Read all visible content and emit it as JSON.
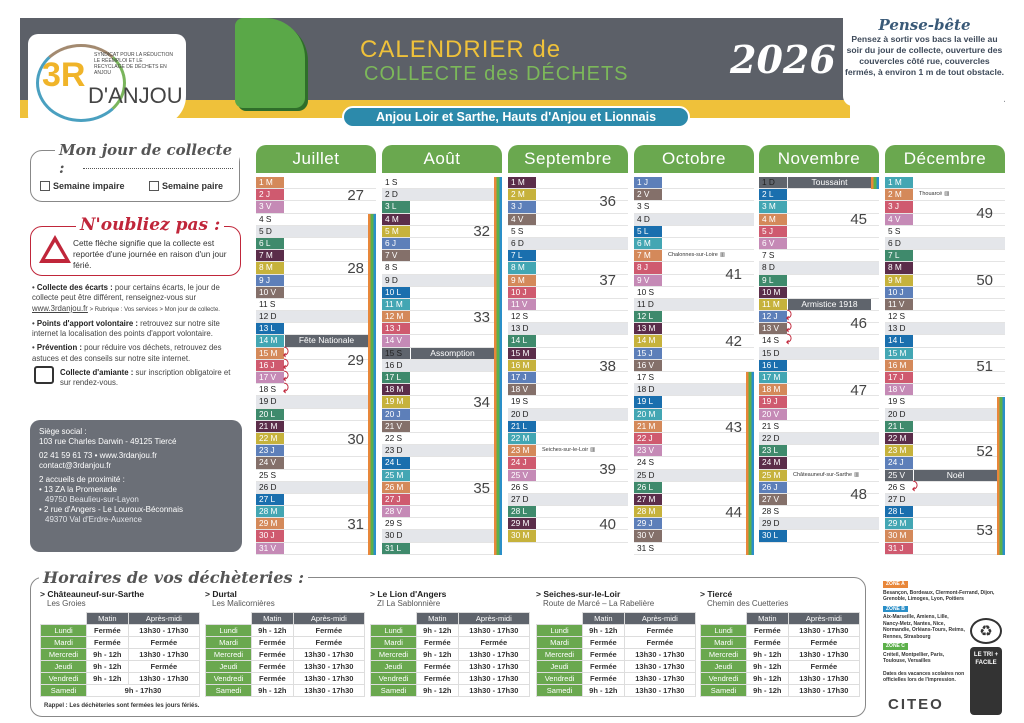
{
  "header": {
    "logo": {
      "big": "3R",
      "dan": "D'ANJOU",
      "tagline": "SYNDICAT POUR LA RÉDUCTION LE RÉEMPLOI ET LE RECYCLAGE DE DÉCHETS EN ANJOU"
    },
    "title_line1": "CALENDRIER de",
    "title_line2": "COLLECTE des DÉCHETS",
    "year": "2026",
    "subtitle": "Anjou Loir et Sarthe, Hauts d'Anjou et Lionnais",
    "pense_bete": {
      "title": "Pense-bête",
      "text": "Pensez à sortir vos bacs la veille au soir du jour de collecte, ouverture des couvercles côté rue, couvercles fermés, à environ 1 m de tout obstacle."
    }
  },
  "sidebar": {
    "jour_title": "Mon jour de collecte :",
    "impaire": "Semaine impaire",
    "paire": "Semaine paire",
    "oubli_title": "N'oubliez pas :",
    "oubli_text": "Cette flèche signifie que la collecte est reportée d'une journée en raison d'un jour férié.",
    "bullets": [
      {
        "b": "Collecte des écarts :",
        "t": " pour certains écarts, le jour de collecte peut être différent, renseignez-vous sur ",
        "link": "www.3rdanjou.fr",
        "s": " > Rubrique : Vos services > Mon jour de collecte."
      },
      {
        "b": "Points d'apport volontaire :",
        "t": " retrouvez sur notre site internet la localisation des points d'apport volontaire."
      },
      {
        "b": "Prévention :",
        "t": " pour réduire vos déchets, retrouvez des astuces et des conseils sur notre site internet."
      },
      {
        "b": "Collecte d'amiante :",
        "t": " sur inscription obligatoire et sur rendez-vous."
      }
    ],
    "contact": {
      "l1": "Siège social :",
      "l2": "103 rue Charles Darwin - 49125 Tiercé",
      "l3": "02 41 59 61 73 • www.3rdanjou.fr",
      "l4": "contact@3rdanjou.fr",
      "l5": "2 accueils de proximité :",
      "l6": "• 13 ZA la Promenade",
      "l7": "49750 Beaulieu-sur-Layon",
      "l8": "• 2 rue d'Angers - Le Louroux-Béconnais",
      "l9": "49370 Val d'Erdre-Auxence"
    }
  },
  "colors": {
    "even_weeks": [
      "#3f8a6c",
      "#5b2d4a",
      "#c6b23c",
      "#5d7fb9",
      "#84706a"
    ],
    "odd_weeks": [
      "#1a6fae",
      "#43a6b3",
      "#d4895a",
      "#cf5a6f",
      "#c58ab6"
    ],
    "month_header": "#6aa84f",
    "holiday": "#5f646c",
    "zone_a": "#e8873a",
    "zone_b": "#2a8fc8",
    "zone_c": "#5cb04a"
  },
  "months": [
    {
      "name": "Juillet",
      "m": 6,
      "school_holidays": [
        [
          4,
          31
        ]
      ],
      "shifted": [
        15,
        16,
        17,
        18
      ],
      "holidays": [
        {
          "day": 14,
          "label": "Fête Nationale",
          "full": false
        }
      ],
      "notes": [],
      "weeks": [
        {
          "week": 27,
          "label": "27",
          "days": [
            "1 M",
            "2 J",
            "3 V",
            "4 S",
            "5 D"
          ]
        },
        {
          "week": 28,
          "label": "28",
          "days": [
            "6 L",
            "7 M",
            "8 M",
            "9 J",
            "10 V",
            "11 S",
            "12 D"
          ]
        },
        {
          "week": 29,
          "label": "29",
          "days": [
            "13 L",
            "14 M",
            "15 M",
            "16 J",
            "17 V",
            "18 S",
            "19 D"
          ]
        },
        {
          "week": 30,
          "label": "30",
          "days": [
            "20 L",
            "21 M",
            "22 M",
            "23 J",
            "24 V",
            "25 S",
            "26 D"
          ]
        },
        {
          "week": 31,
          "label": "31",
          "days": [
            "27 L",
            "28 M",
            "29 M",
            "30 J",
            "31 V"
          ]
        }
      ]
    },
    {
      "name": "Août",
      "m": 7,
      "school_holidays": [
        [
          1,
          31
        ]
      ],
      "shifted": [],
      "holidays": [
        {
          "day": 15,
          "label": "Assomption",
          "full": true
        }
      ],
      "notes": [],
      "weeks": [
        {
          "week": 31,
          "days": [
            "1 S",
            "2 D"
          ]
        },
        {
          "week": 32,
          "label": "32",
          "days": [
            "3 L",
            "4 M",
            "5 M",
            "6 J",
            "7 V",
            "8 S",
            "9 D"
          ]
        },
        {
          "week": 33,
          "label": "33",
          "days": [
            "10 L",
            "11 M",
            "12 M",
            "13 J",
            "14 V",
            "15 S",
            "16 D"
          ]
        },
        {
          "week": 34,
          "label": "34",
          "days": [
            "17 L",
            "18 M",
            "19 M",
            "20 J",
            "21 V",
            "22 S",
            "23 D"
          ]
        },
        {
          "week": 35,
          "label": "35",
          "days": [
            "24 L",
            "25 M",
            "26 M",
            "27 J",
            "28 V",
            "29 S",
            "30 D"
          ]
        },
        {
          "week": 36,
          "days": [
            "31 L"
          ]
        }
      ]
    },
    {
      "name": "Septembre",
      "m": 8,
      "school_holidays": [],
      "shifted": [],
      "holidays": [],
      "notes": [
        {
          "day": 23,
          "text": "Seiches-sur-le-Loir"
        }
      ],
      "weeks": [
        {
          "week": 36,
          "label": "36",
          "days": [
            "1 M",
            "2 M",
            "3 J",
            "4 V",
            "5 S",
            "6 D"
          ]
        },
        {
          "week": 37,
          "label": "37",
          "days": [
            "7 L",
            "8 M",
            "9 M",
            "10 J",
            "11 V",
            "12 S",
            "13 D"
          ]
        },
        {
          "week": 38,
          "label": "38",
          "days": [
            "14 L",
            "15 M",
            "16 M",
            "17 J",
            "18 V",
            "19 S",
            "20 D"
          ]
        },
        {
          "week": 39,
          "label": "39",
          "days": [
            "21 L",
            "22 M",
            "23 M",
            "24 J",
            "25 V",
            "26 S",
            "27 D"
          ]
        },
        {
          "week": 40,
          "label": "40",
          "days": [
            "28 L",
            "29 M",
            "30 M"
          ]
        }
      ]
    },
    {
      "name": "Octobre",
      "m": 9,
      "school_holidays": [
        [
          17,
          31
        ]
      ],
      "shifted": [],
      "holidays": [],
      "notes": [
        {
          "day": 7,
          "text": "Chalonnes-sur-Loire"
        }
      ],
      "weeks": [
        {
          "week": 40,
          "days": [
            "1 J",
            "2 V",
            "3 S",
            "4 D"
          ]
        },
        {
          "week": 41,
          "label": "41",
          "days": [
            "5 L",
            "6 M",
            "7 M",
            "8 J",
            "9 V",
            "10 S",
            "11 D"
          ]
        },
        {
          "week": 42,
          "label": "42",
          "days": [
            "12 L",
            "13 M",
            "14 M",
            "15 J",
            "16 V",
            "17 S",
            "18 D"
          ]
        },
        {
          "week": 43,
          "label": "43",
          "days": [
            "19 L",
            "20 M",
            "21 M",
            "22 J",
            "23 V",
            "24 S",
            "25 D"
          ]
        },
        {
          "week": 44,
          "label": "44",
          "days": [
            "26 L",
            "27 M",
            "28 M",
            "29 J",
            "30 V",
            "31 S"
          ]
        }
      ]
    },
    {
      "name": "Novembre",
      "m": 10,
      "school_holidays": [
        [
          1,
          1
        ]
      ],
      "shifted": [
        12,
        13,
        14
      ],
      "holidays": [
        {
          "day": 1,
          "label": "Toussaint",
          "full": true
        },
        {
          "day": 11,
          "label": "Armistice 1918",
          "full": false
        }
      ],
      "notes": [
        {
          "day": 25,
          "text": "Châteauneuf-sur-Sarthe"
        }
      ],
      "weeks": [
        {
          "week": 44,
          "days": [
            "1 D"
          ]
        },
        {
          "week": 45,
          "label": "45",
          "days": [
            "2 L",
            "3 M",
            "4 M",
            "5 J",
            "6 V",
            "7 S",
            "8 D"
          ]
        },
        {
          "week": 46,
          "label": "46",
          "days": [
            "9 L",
            "10 M",
            "11 M",
            "12 J",
            "13 V",
            "14 S",
            "15 D"
          ]
        },
        {
          "week": 47,
          "label": "47",
          "days": [
            "16 L",
            "17 M",
            "18 M",
            "19 J",
            "20 V",
            "21 S",
            "22 D"
          ]
        },
        {
          "week": 48,
          "label": "48",
          "days": [
            "23 L",
            "24 M",
            "25 M",
            "26 J",
            "27 V",
            "28 S",
            "29 D"
          ]
        },
        {
          "week": 49,
          "days": [
            "30 L"
          ]
        }
      ]
    },
    {
      "name": "Décembre",
      "m": 11,
      "school_holidays": [
        [
          19,
          31
        ]
      ],
      "shifted": [
        26
      ],
      "holidays": [
        {
          "day": 25,
          "label": "Noël",
          "full": true
        }
      ],
      "notes": [
        {
          "day": 2,
          "text": "Thouarcé"
        }
      ],
      "weeks": [
        {
          "week": 49,
          "label": "49",
          "days": [
            "1 M",
            "2 M",
            "3 J",
            "4 V",
            "5 S",
            "6 D"
          ]
        },
        {
          "week": 50,
          "label": "50",
          "days": [
            "7 L",
            "8 M",
            "9 M",
            "10 J",
            "11 V",
            "12 S",
            "13 D"
          ]
        },
        {
          "week": 51,
          "label": "51",
          "days": [
            "14 L",
            "15 M",
            "16 M",
            "17 J",
            "18 V",
            "19 S",
            "20 D"
          ]
        },
        {
          "week": 52,
          "label": "52",
          "days": [
            "21 L",
            "22 M",
            "23 M",
            "24 J",
            "25 V",
            "26 S",
            "27 D"
          ]
        },
        {
          "week": 53,
          "label": "53",
          "days": [
            "28 L",
            "29 M",
            "30 M",
            "31 J"
          ]
        }
      ]
    }
  ],
  "decheteries": {
    "title": "Horaires de vos déchèteries :",
    "col_matin": "Matin",
    "col_aprem": "Après-midi",
    "rappel": "Rappel : Les déchèteries sont fermées les jours fériés.",
    "sites": [
      {
        "name": "> Châteauneuf-sur-Sarthe",
        "loc": "Les Groies",
        "rows": [
          [
            "Lundi",
            "Fermée",
            "13h30 - 17h30"
          ],
          [
            "Mardi",
            "Fermée",
            "Fermée"
          ],
          [
            "Mercredi",
            "9h - 12h",
            "13h30 - 17h30"
          ],
          [
            "Jeudi",
            "9h - 12h",
            "Fermée"
          ],
          [
            "Vendredi",
            "9h - 12h",
            "13h30 - 17h30"
          ],
          [
            "Samedi",
            "9h - 17h30"
          ]
        ]
      },
      {
        "name": "> Durtal",
        "loc": "Les Malicornières",
        "rows": [
          [
            "Lundi",
            "9h - 12h",
            "Fermée"
          ],
          [
            "Mardi",
            "Fermée",
            "Fermée"
          ],
          [
            "Mercredi",
            "Fermée",
            "13h30 - 17h30"
          ],
          [
            "Jeudi",
            "Fermée",
            "13h30 - 17h30"
          ],
          [
            "Vendredi",
            "Fermée",
            "13h30 - 17h30"
          ],
          [
            "Samedi",
            "9h - 12h",
            "13h30 - 17h30"
          ]
        ]
      },
      {
        "name": "> Le Lion d'Angers",
        "loc": "ZI La Sablonnière",
        "rows": [
          [
            "Lundi",
            "9h - 12h",
            "13h30 - 17h30"
          ],
          [
            "Mardi",
            "Fermée",
            "Fermée"
          ],
          [
            "Mercredi",
            "9h - 12h",
            "13h30 - 17h30"
          ],
          [
            "Jeudi",
            "Fermée",
            "13h30 - 17h30"
          ],
          [
            "Vendredi",
            "Fermée",
            "13h30 - 17h30"
          ],
          [
            "Samedi",
            "9h - 12h",
            "13h30 - 17h30"
          ]
        ]
      },
      {
        "name": "> Seiches-sur-le-Loir",
        "loc": "Route de Marcé – La Rabelière",
        "rows": [
          [
            "Lundi",
            "9h - 12h",
            "Fermée"
          ],
          [
            "Mardi",
            "Fermée",
            "Fermée"
          ],
          [
            "Mercredi",
            "Fermée",
            "13h30 - 17h30"
          ],
          [
            "Jeudi",
            "Fermée",
            "13h30 - 17h30"
          ],
          [
            "Vendredi",
            "Fermée",
            "13h30 - 17h30"
          ],
          [
            "Samedi",
            "9h - 12h",
            "13h30 - 17h30"
          ]
        ]
      },
      {
        "name": "> Tiercé",
        "loc": "Chemin des Cuetteries",
        "rows": [
          [
            "Lundi",
            "Fermée",
            "13h30 - 17h30"
          ],
          [
            "Mardi",
            "Fermée",
            "Fermée"
          ],
          [
            "Mercredi",
            "9h - 12h",
            "13h30 - 17h30"
          ],
          [
            "Jeudi",
            "9h - 12h",
            "Fermée"
          ],
          [
            "Vendredi",
            "9h - 12h",
            "13h30 - 17h30"
          ],
          [
            "Samedi",
            "9h - 12h",
            "13h30 - 17h30"
          ]
        ]
      }
    ]
  },
  "zones": [
    {
      "label": "ZONE A",
      "cities": "Besançon, Bordeaux, Clermont-Ferrand, Dijon, Grenoble, Limoges, Lyon, Poitiers"
    },
    {
      "label": "ZONE B",
      "cities": "Aix-Marseille, Amiens, Lille, Nancy-Metz, Nantes, Nice, Normandie, Orléans-Tours, Reims, Rennes, Strasbourg"
    },
    {
      "label": "ZONE C",
      "cities": "Créteil, Montpellier, Paris, Toulouse, Versailles"
    }
  ],
  "zones_note": "Dates des vacances scolaires non officielles lors de l'impression.",
  "footer": {
    "citeo": "CITEO",
    "tri_facile": "LE TRI + FACILE"
  }
}
